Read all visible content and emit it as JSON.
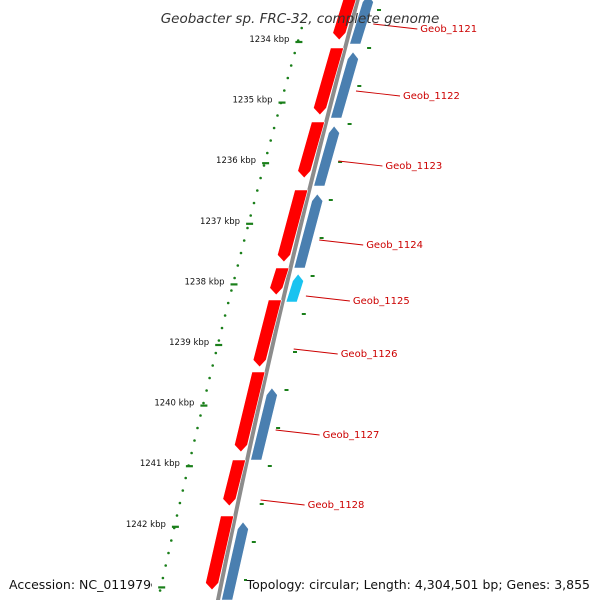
{
  "title": "Geobacter sp. FRC-32, complete genome",
  "accession": "Accession: NC_011979",
  "topology": "Topology: circular; Length: 4,304,501 bp; Genes: 3,855",
  "colors": {
    "backbone": "#8c8c8c",
    "forward_gene": "#ff0000",
    "reverse_gene": "#4a7fb0",
    "highlight_gene": "#19c3f0",
    "ruler": "#1a7f1a",
    "label": "#cc0000"
  },
  "ruler": {
    "unit": "kbp",
    "ticks": [
      {
        "kbp": 1234,
        "label": "1234 kbp"
      },
      {
        "kbp": 1235,
        "label": "1235 kbp"
      },
      {
        "kbp": 1236,
        "label": "1236 kbp"
      },
      {
        "kbp": 1237,
        "label": "1237 kbp"
      },
      {
        "kbp": 1238,
        "label": "1238 kbp"
      },
      {
        "kbp": 1239,
        "label": "1239 kbp"
      },
      {
        "kbp": 1240,
        "label": "1240 kbp"
      },
      {
        "kbp": 1241,
        "label": "1241 kbp"
      },
      {
        "kbp": 1242,
        "label": "1242 kbp"
      },
      {
        "kbp": 1243,
        "label": "kbp"
      }
    ]
  },
  "genes": [
    {
      "name": "Geob_1121"
    },
    {
      "name": "Geob_1122"
    },
    {
      "name": "Geob_1123"
    },
    {
      "name": "Geob_1124"
    },
    {
      "name": "Geob_1125"
    },
    {
      "name": "Geob_1126"
    },
    {
      "name": "Geob_1127"
    },
    {
      "name": "Geob_1128"
    }
  ]
}
